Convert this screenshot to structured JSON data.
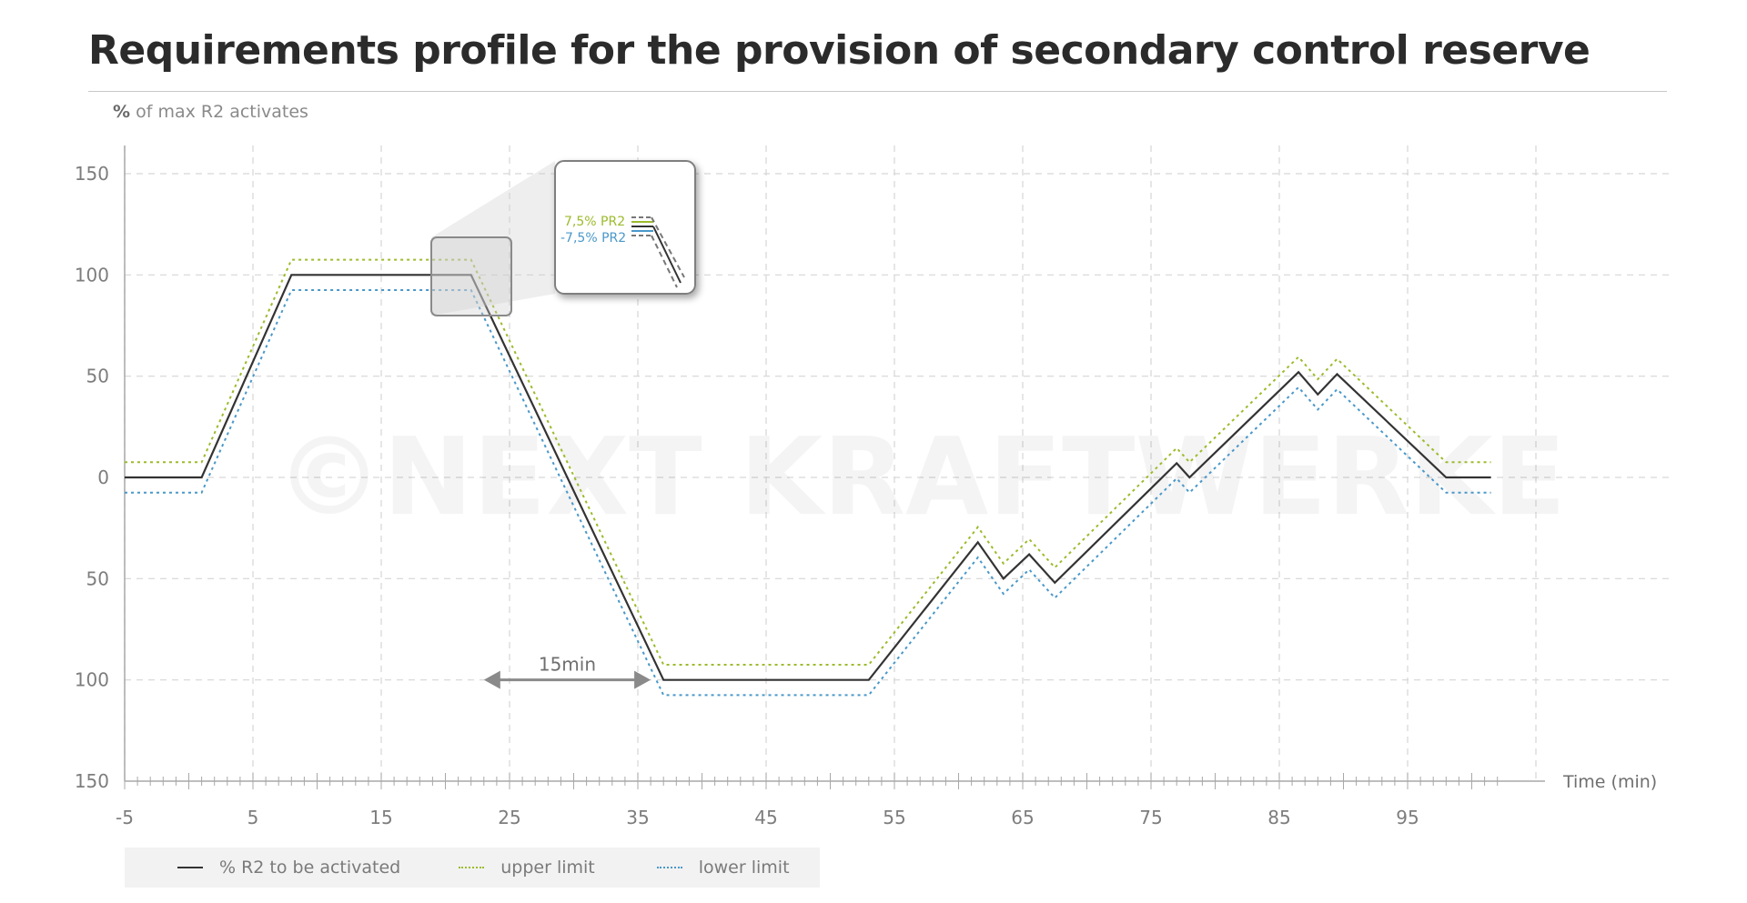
{
  "title": "Requirements profile for the provision of secondary control reserve",
  "y_axis_label": {
    "unit": "%",
    "text": " of max R2 activates"
  },
  "watermark": "©NEXT KRAFTWERKE",
  "annotation_span": "15min",
  "inset": {
    "upper_label": "7,5% PR2",
    "lower_label": "-7,5% PR2"
  },
  "colors": {
    "main": "#333333",
    "upper": "#9cbb2c",
    "lower": "#4a98c9",
    "grid": "#d6d6d6",
    "axis": "#a8a8a8"
  },
  "legend": {
    "main": "% R2 to be activated",
    "upper": "upper limit",
    "lower": "lower limit"
  },
  "chart_data": {
    "type": "line",
    "xlabel": "Time (min)",
    "ylabel": "% of max R2 activates",
    "xlim": [
      -5,
      115
    ],
    "ylim": [
      -150,
      150
    ],
    "x_ticks": [
      -5,
      5,
      15,
      25,
      35,
      45,
      55,
      65,
      75,
      85,
      95
    ],
    "y_ticks": [
      150,
      100,
      50,
      0,
      -50,
      -100,
      -150
    ],
    "y_tick_labels": [
      "150",
      "100",
      "50",
      "0",
      "50",
      "100",
      "150"
    ],
    "grid": true,
    "legend_position": "bottom-left",
    "series": [
      {
        "name": "% R2 to be activated",
        "style": "solid",
        "x": [
          -5,
          1,
          8,
          22,
          37,
          53,
          61.5,
          63.5,
          65.5,
          67.5,
          77,
          78,
          86.5,
          88,
          89.5,
          98,
          101.5
        ],
        "y": [
          0,
          0,
          100,
          100,
          -100,
          -100,
          -32,
          -50,
          -38,
          -52,
          7,
          0,
          52,
          41,
          51,
          0,
          0
        ]
      },
      {
        "name": "upper limit",
        "style": "dotted",
        "x": [
          -5,
          1,
          8,
          22,
          37,
          53,
          61.5,
          63.5,
          65.5,
          67.5,
          77,
          78,
          86.5,
          88,
          89.5,
          98,
          101.5
        ],
        "y": [
          7.5,
          7.5,
          107.5,
          107.5,
          -92.5,
          -92.5,
          -24.5,
          -42.5,
          -30.5,
          -44.5,
          14.5,
          7.5,
          59.5,
          48.5,
          58.5,
          7.5,
          7.5
        ]
      },
      {
        "name": "lower limit",
        "style": "dotted",
        "x": [
          -5,
          1,
          8,
          22,
          37,
          53,
          61.5,
          63.5,
          65.5,
          67.5,
          77,
          78,
          86.5,
          88,
          89.5,
          98,
          101.5
        ],
        "y": [
          -7.5,
          -7.5,
          92.5,
          92.5,
          -107.5,
          -107.5,
          -39.5,
          -57.5,
          -45.5,
          -59.5,
          -0.5,
          -7.5,
          44.5,
          33.5,
          43.5,
          -7.5,
          -7.5
        ]
      }
    ]
  }
}
